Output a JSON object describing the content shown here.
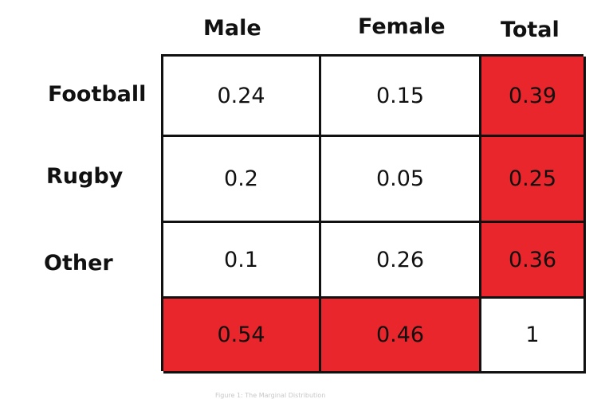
{
  "columns": {
    "male": "Male",
    "female": "Female",
    "total": "Total"
  },
  "rows": {
    "football": "Football",
    "rugby": "Rugby",
    "other": "Other"
  },
  "cells": {
    "football": {
      "male": "0.24",
      "female": "0.15",
      "total": "0.39"
    },
    "rugby": {
      "male": "0.2",
      "female": "0.05",
      "total": "0.25"
    },
    "other": {
      "male": "0.1",
      "female": "0.26",
      "total": "0.36"
    },
    "totals": {
      "male": "0.54",
      "female": "0.46",
      "total": "1"
    }
  },
  "colors": {
    "marginal_highlight": "#e8262b",
    "cell_background": "#ffffff",
    "grid_line": "#111111"
  },
  "caption": "Figure 1: The Marginal Distribution"
}
